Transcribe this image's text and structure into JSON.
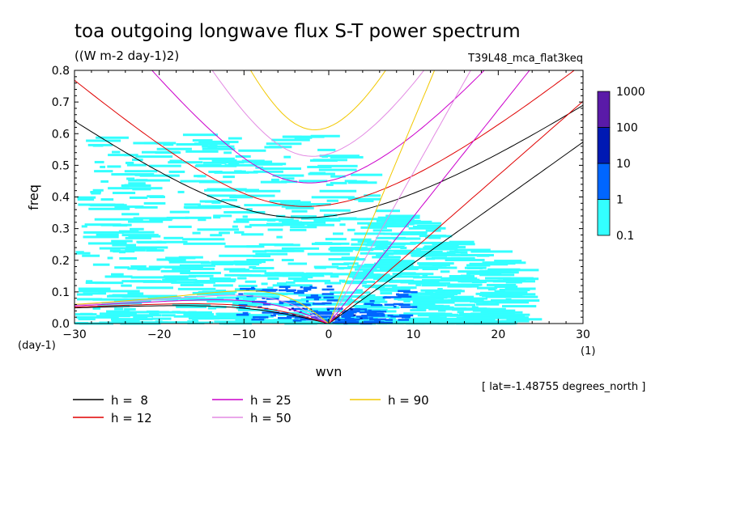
{
  "chart_data": {
    "type": "heatmap",
    "title": "toa outgoing longwave flux S-T power spectrum",
    "subtitle": "((W m-2 day-1)2)",
    "run_label": "T39L48_mca_flat3keq",
    "xlabel": "wvn",
    "ylabel": "freq",
    "x_unit_label": "(1)",
    "y_unit_label": "(day-1)",
    "lat_note": "[ lat=-1.48755 degrees_north ]",
    "xlim": [
      -30,
      30
    ],
    "ylim": [
      0,
      0.8
    ],
    "x_ticks": [
      -30,
      -20,
      -10,
      0,
      10,
      20,
      30
    ],
    "x_tick_labels": [
      "-30",
      "-20",
      "-10",
      "0",
      "10",
      "20",
      "30"
    ],
    "y_ticks": [
      0,
      0.1,
      0.2,
      0.3,
      0.4,
      0.5,
      0.6,
      0.7,
      0.8
    ],
    "y_tick_labels": [
      "0.0",
      "0.1",
      "0.2",
      "0.3",
      "0.4",
      "0.5",
      "0.6",
      "0.7",
      "0.8"
    ],
    "colorbar": {
      "levels": [
        "0.1",
        "1",
        "10",
        "100",
        "1000"
      ],
      "colors": [
        "#33ffff",
        "#0066ff",
        "#0019b3",
        "#5a1aa8"
      ]
    },
    "heatmap_regions": [
      {
        "label": "0.1-1",
        "color": "#33ffff",
        "description_bounds": {
          "x": [
            -30,
            21
          ],
          "y": [
            0,
            0.6
          ]
        }
      },
      {
        "label": "1-10",
        "color": "#0066ff",
        "description_bounds": {
          "x": [
            -11,
            9
          ],
          "y": [
            0,
            0.12
          ]
        }
      }
    ],
    "series": [
      {
        "name": "h =  8",
        "h": 8,
        "color": "#000000"
      },
      {
        "name": "h = 12",
        "h": 12,
        "color": "#e00000"
      },
      {
        "name": "h = 25",
        "h": 25,
        "color": "#cc00cc"
      },
      {
        "name": "h = 50",
        "h": 50,
        "color": "#e38ae3"
      },
      {
        "name": "h = 90",
        "h": 90,
        "color": "#f2c800"
      }
    ],
    "legend_position": "bottom-left"
  }
}
